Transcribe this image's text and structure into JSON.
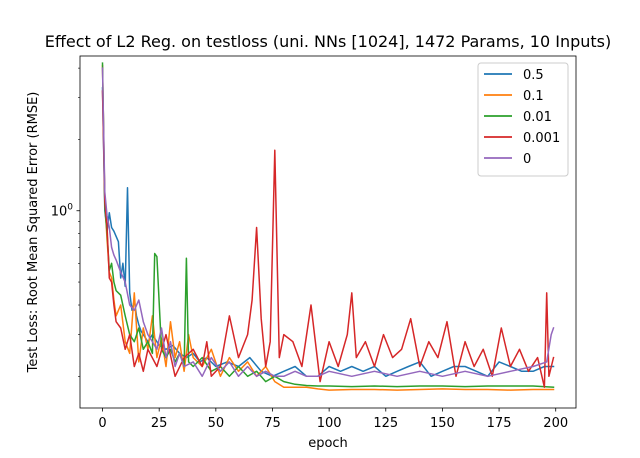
{
  "chart_data": {
    "type": "line",
    "title": "Effect of L2 Reg. on testloss (uni. NNs [1024], 1472 Params, 10 Inputs)",
    "xlabel": "epoch",
    "ylabel": "Test Loss: Root Mean Squared Error (RMSE)",
    "xlim": [
      -9.95,
      208.95
    ],
    "ylim": [
      0.147,
      4.5
    ],
    "y_scale": "log",
    "x_ticks": [
      0,
      25,
      50,
      75,
      100,
      125,
      150,
      175,
      200
    ],
    "y_major_ticks": [
      1
    ],
    "y_major_tick_labels": [
      "10^0"
    ],
    "y_minor_ticks": [
      0.2,
      0.3,
      0.4,
      0.5,
      0.6,
      0.7,
      0.8,
      0.9,
      2,
      3,
      4
    ],
    "grid": false,
    "legend_position": "upper right",
    "series": [
      {
        "name": "0.5",
        "color": "#1f77b4",
        "x": [
          0,
          1,
          2,
          3,
          4,
          5,
          6,
          7,
          8,
          9,
          10,
          11,
          12,
          13,
          14,
          15,
          16,
          17,
          18,
          19,
          20,
          22,
          25,
          28,
          31,
          34,
          37,
          40,
          43,
          46,
          50,
          55,
          60,
          65,
          70,
          75,
          80,
          85,
          90,
          95,
          100,
          105,
          110,
          115,
          120,
          125,
          130,
          135,
          140,
          145,
          150,
          155,
          160,
          165,
          170,
          175,
          180,
          185,
          190,
          195,
          199
        ],
        "y": [
          3.3,
          1.0,
          0.82,
          0.98,
          0.85,
          0.82,
          0.78,
          0.74,
          0.52,
          0.6,
          0.48,
          1.25,
          0.45,
          0.38,
          0.42,
          0.36,
          0.33,
          0.31,
          0.3,
          0.29,
          0.28,
          0.3,
          0.27,
          0.26,
          0.27,
          0.25,
          0.24,
          0.25,
          0.23,
          0.24,
          0.22,
          0.23,
          0.22,
          0.24,
          0.21,
          0.2,
          0.21,
          0.22,
          0.2,
          0.2,
          0.22,
          0.21,
          0.22,
          0.21,
          0.22,
          0.2,
          0.21,
          0.22,
          0.23,
          0.2,
          0.21,
          0.22,
          0.22,
          0.21,
          0.2,
          0.23,
          0.22,
          0.21,
          0.21,
          0.22,
          0.22
        ]
      },
      {
        "name": "0.1",
        "color": "#ff7f0e",
        "x": [
          0,
          1,
          2,
          3,
          4,
          5,
          6,
          8,
          10,
          12,
          14,
          16,
          18,
          20,
          22,
          24,
          26,
          28,
          30,
          32,
          34,
          36,
          38,
          40,
          44,
          48,
          52,
          56,
          60,
          64,
          68,
          72,
          76,
          80,
          85,
          90,
          95,
          100,
          110,
          120,
          130,
          140,
          150,
          160,
          170,
          180,
          190,
          199
        ],
        "y": [
          4.1,
          1.1,
          0.75,
          0.55,
          0.52,
          0.42,
          0.36,
          0.4,
          0.28,
          0.25,
          0.45,
          0.23,
          0.32,
          0.26,
          0.36,
          0.24,
          0.29,
          0.22,
          0.34,
          0.24,
          0.28,
          0.21,
          0.3,
          0.24,
          0.22,
          0.26,
          0.2,
          0.24,
          0.21,
          0.23,
          0.2,
          0.22,
          0.19,
          0.18,
          0.18,
          0.18,
          0.177,
          0.175,
          0.176,
          0.176,
          0.175,
          0.176,
          0.177,
          0.176,
          0.176,
          0.175,
          0.176,
          0.176
        ]
      },
      {
        "name": "0.01",
        "color": "#2ca02c",
        "x": [
          0,
          1,
          2,
          3,
          4,
          5,
          6,
          8,
          10,
          12,
          14,
          16,
          18,
          20,
          22,
          23,
          24,
          26,
          28,
          30,
          32,
          34,
          36,
          37,
          38,
          40,
          44,
          48,
          52,
          56,
          60,
          64,
          68,
          72,
          76,
          80,
          85,
          90,
          95,
          100,
          110,
          120,
          130,
          140,
          150,
          160,
          170,
          180,
          190,
          199
        ],
        "y": [
          4.2,
          1.05,
          0.8,
          0.56,
          0.6,
          0.5,
          0.46,
          0.44,
          0.36,
          0.3,
          0.28,
          0.32,
          0.26,
          0.28,
          0.25,
          0.66,
          0.64,
          0.26,
          0.24,
          0.26,
          0.23,
          0.25,
          0.22,
          0.63,
          0.23,
          0.22,
          0.24,
          0.21,
          0.22,
          0.2,
          0.22,
          0.2,
          0.21,
          0.19,
          0.2,
          0.19,
          0.185,
          0.183,
          0.182,
          0.182,
          0.181,
          0.182,
          0.181,
          0.182,
          0.182,
          0.181,
          0.182,
          0.182,
          0.182,
          0.18
        ]
      },
      {
        "name": "0.001",
        "color": "#d62728",
        "x": [
          0,
          1,
          2,
          3,
          4,
          5,
          6,
          8,
          10,
          12,
          14,
          16,
          18,
          20,
          24,
          28,
          32,
          36,
          40,
          44,
          46,
          48,
          52,
          56,
          60,
          64,
          66,
          68,
          70,
          72,
          74,
          76,
          78,
          80,
          84,
          88,
          92,
          96,
          100,
          104,
          108,
          110,
          112,
          116,
          120,
          124,
          128,
          132,
          136,
          140,
          144,
          148,
          152,
          156,
          160,
          164,
          168,
          172,
          176,
          180,
          184,
          188,
          192,
          195,
          196,
          197,
          199
        ],
        "y": [
          3.2,
          1.1,
          0.85,
          0.52,
          0.5,
          0.4,
          0.34,
          0.32,
          0.26,
          0.3,
          0.22,
          0.25,
          0.21,
          0.26,
          0.22,
          0.3,
          0.2,
          0.24,
          0.26,
          0.22,
          0.28,
          0.2,
          0.22,
          0.36,
          0.24,
          0.3,
          0.42,
          0.85,
          0.35,
          0.22,
          0.28,
          1.8,
          0.24,
          0.3,
          0.28,
          0.22,
          0.4,
          0.19,
          0.28,
          0.22,
          0.3,
          0.45,
          0.24,
          0.28,
          0.22,
          0.3,
          0.24,
          0.26,
          0.35,
          0.22,
          0.28,
          0.24,
          0.34,
          0.2,
          0.28,
          0.22,
          0.26,
          0.2,
          0.32,
          0.22,
          0.26,
          0.21,
          0.24,
          0.18,
          0.45,
          0.2,
          0.24
        ]
      },
      {
        "name": "0",
        "color": "#9467bd",
        "x": [
          0,
          1,
          2,
          3,
          4,
          5,
          6,
          8,
          10,
          12,
          14,
          16,
          18,
          20,
          22,
          24,
          26,
          28,
          30,
          32,
          34,
          36,
          40,
          44,
          48,
          52,
          56,
          60,
          64,
          68,
          72,
          76,
          80,
          85,
          90,
          95,
          100,
          110,
          120,
          130,
          140,
          150,
          160,
          170,
          180,
          190,
          196,
          198,
          199
        ],
        "y": [
          4.0,
          1.2,
          0.95,
          0.85,
          0.7,
          0.65,
          0.62,
          0.55,
          0.5,
          0.4,
          0.38,
          0.42,
          0.34,
          0.3,
          0.28,
          0.26,
          0.32,
          0.24,
          0.28,
          0.22,
          0.25,
          0.22,
          0.23,
          0.2,
          0.24,
          0.21,
          0.23,
          0.2,
          0.22,
          0.2,
          0.21,
          0.2,
          0.2,
          0.21,
          0.2,
          0.2,
          0.21,
          0.2,
          0.21,
          0.2,
          0.21,
          0.2,
          0.21,
          0.2,
          0.21,
          0.22,
          0.23,
          0.3,
          0.32
        ]
      }
    ]
  }
}
